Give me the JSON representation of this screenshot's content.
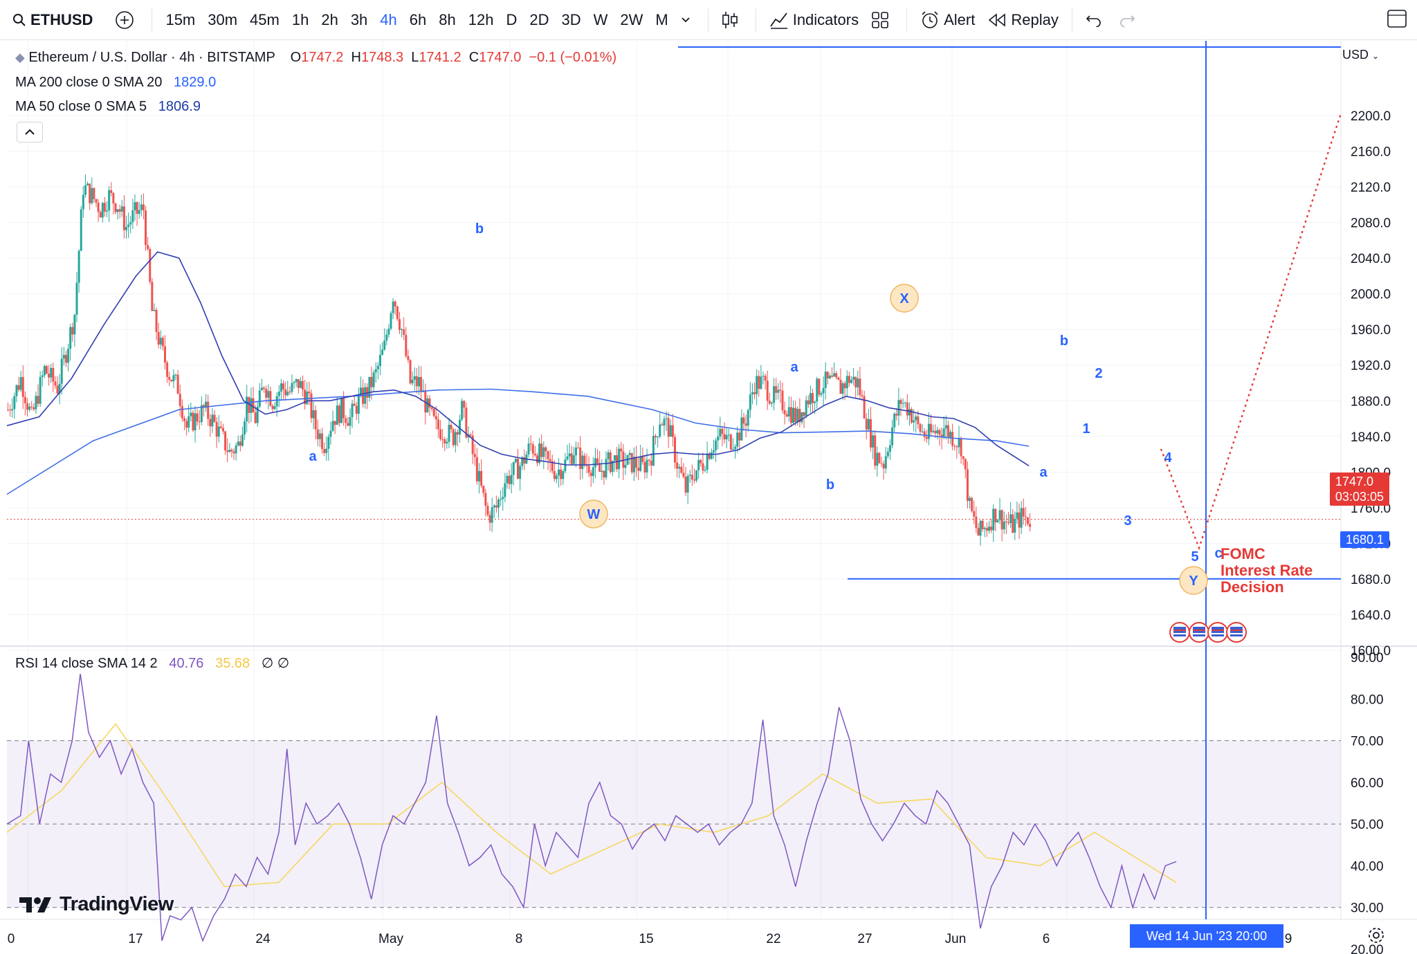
{
  "toolbar": {
    "symbol": "ETHUSD",
    "intervals": [
      "15m",
      "30m",
      "45m",
      "1h",
      "2h",
      "3h",
      "4h",
      "6h",
      "8h",
      "12h",
      "D",
      "2D",
      "3D",
      "W",
      "2W",
      "M"
    ],
    "active_interval": "4h",
    "indicators_label": "Indicators",
    "alert_label": "Alert",
    "replay_label": "Replay"
  },
  "legend": {
    "title": "Ethereum / U.S. Dollar · 4h · BITSTAMP",
    "o_label": "O",
    "o": "1747.2",
    "h_label": "H",
    "h": "1748.3",
    "l_label": "L",
    "l": "1741.2",
    "c_label": "C",
    "c": "1747.0",
    "change": "−0.1 (−0.01%)",
    "ma1_label": "MA 200 close 0 SMA 20",
    "ma1_value": "1829.0",
    "ma2_label": "MA 50 close 0 SMA 5",
    "ma2_value": "1806.9",
    "rsi_label": "RSI 14 close SMA 14 2",
    "rsi_value": "40.76",
    "rsi_sma": "35.68",
    "rsi_extra": "∅ ∅"
  },
  "price_axis": {
    "currency": "USD",
    "ticks": [
      "2200.0",
      "2160.0",
      "2120.0",
      "2080.0",
      "2040.0",
      "2000.0",
      "1960.0",
      "1920.0",
      "1880.0",
      "1840.0",
      "1800.0",
      "1760.0",
      "1720.0",
      "1680.0",
      "1640.0",
      "1600.0"
    ],
    "last_price": "1747.0",
    "countdown": "03:03:05",
    "level_tag": "1680.1"
  },
  "rsi_axis": {
    "ticks": [
      "90.00",
      "80.00",
      "70.00",
      "60.00",
      "50.00",
      "40.00",
      "30.00",
      "20.00"
    ]
  },
  "time_axis": {
    "labels": [
      "0",
      "17",
      "24",
      "May",
      "8",
      "15",
      "22",
      "27",
      "Jun",
      "6",
      "9"
    ],
    "crosshair_date": "Wed 14 Jun '23   20:00"
  },
  "wave_labels": [
    "a",
    "b",
    "W",
    "a",
    "b",
    "X",
    "a",
    "b",
    "1",
    "2",
    "3",
    "4",
    "5",
    "c",
    "Y"
  ],
  "annotation": {
    "line1": "FOMC",
    "line2": "Interest Rate",
    "line3": "Decision"
  },
  "brand": "TradingView",
  "colors": {
    "up": "#26a69a",
    "down": "#ef5350",
    "ma200": "#3f6ee8",
    "ma50": "#2f3fb0",
    "rsi": "#7e57c2",
    "rsi_sma": "#f6d860",
    "accent": "#2962ff",
    "label": "#2962ff",
    "annotation": "#e53935"
  },
  "chart_data": {
    "type": "candlestick",
    "instrument": "ETHUSD",
    "ylim": [
      1580,
      2210
    ],
    "rsi_ylim": [
      15,
      95
    ],
    "rsi_bands": [
      30,
      70
    ],
    "close_path": [
      [
        0,
        1870
      ],
      [
        6,
        1905
      ],
      [
        11,
        1860
      ],
      [
        17,
        1915
      ],
      [
        23,
        1895
      ],
      [
        27,
        1935
      ],
      [
        31,
        1978
      ],
      [
        35,
        2120
      ],
      [
        39,
        2110
      ],
      [
        43,
        2095
      ],
      [
        47,
        2110
      ],
      [
        51,
        2100
      ],
      [
        55,
        2075
      ],
      [
        59,
        2090
      ],
      [
        63,
        2095
      ],
      [
        67,
        1980
      ],
      [
        71,
        1940
      ],
      [
        75,
        1910
      ],
      [
        79,
        1895
      ],
      [
        83,
        1850
      ],
      [
        87,
        1860
      ],
      [
        91,
        1870
      ],
      [
        95,
        1858
      ],
      [
        99,
        1840
      ],
      [
        103,
        1822
      ],
      [
        107,
        1830
      ],
      [
        111,
        1880
      ],
      [
        115,
        1860
      ],
      [
        119,
        1900
      ],
      [
        123,
        1880
      ],
      [
        127,
        1895
      ],
      [
        131,
        1890
      ],
      [
        135,
        1900
      ],
      [
        139,
        1885
      ],
      [
        143,
        1850
      ],
      [
        147,
        1832
      ],
      [
        151,
        1860
      ],
      [
        155,
        1870
      ],
      [
        159,
        1860
      ],
      [
        163,
        1880
      ],
      [
        167,
        1890
      ],
      [
        171,
        1910
      ],
      [
        175,
        1940
      ],
      [
        179,
        2000
      ],
      [
        183,
        1960
      ],
      [
        187,
        1900
      ],
      [
        191,
        1900
      ],
      [
        195,
        1870
      ],
      [
        199,
        1850
      ],
      [
        203,
        1845
      ],
      [
        207,
        1840
      ],
      [
        211,
        1870
      ],
      [
        215,
        1830
      ],
      [
        219,
        1790
      ],
      [
        223,
        1750
      ],
      [
        227,
        1760
      ],
      [
        231,
        1790
      ],
      [
        235,
        1800
      ],
      [
        239,
        1810
      ],
      [
        243,
        1830
      ],
      [
        247,
        1820
      ],
      [
        251,
        1810
      ],
      [
        255,
        1800
      ],
      [
        259,
        1810
      ],
      [
        263,
        1825
      ],
      [
        267,
        1810
      ],
      [
        271,
        1808
      ],
      [
        275,
        1800
      ],
      [
        279,
        1810
      ],
      [
        283,
        1815
      ],
      [
        287,
        1810
      ],
      [
        291,
        1810
      ],
      [
        295,
        1805
      ],
      [
        299,
        1820
      ],
      [
        303,
        1860
      ],
      [
        307,
        1850
      ],
      [
        311,
        1810
      ],
      [
        315,
        1780
      ],
      [
        319,
        1800
      ],
      [
        323,
        1810
      ],
      [
        327,
        1830
      ],
      [
        331,
        1840
      ],
      [
        335,
        1835
      ],
      [
        339,
        1840
      ],
      [
        343,
        1860
      ],
      [
        347,
        1900
      ],
      [
        351,
        1900
      ],
      [
        355,
        1885
      ],
      [
        359,
        1880
      ],
      [
        363,
        1870
      ],
      [
        367,
        1860
      ],
      [
        371,
        1880
      ],
      [
        375,
        1890
      ],
      [
        379,
        1900
      ],
      [
        383,
        1900
      ],
      [
        387,
        1895
      ],
      [
        391,
        1905
      ],
      [
        395,
        1900
      ],
      [
        399,
        1860
      ],
      [
        403,
        1820
      ],
      [
        407,
        1810
      ],
      [
        411,
        1850
      ],
      [
        415,
        1880
      ],
      [
        419,
        1870
      ],
      [
        423,
        1850
      ],
      [
        427,
        1840
      ],
      [
        431,
        1845
      ],
      [
        435,
        1850
      ],
      [
        439,
        1840
      ],
      [
        443,
        1830
      ],
      [
        447,
        1760
      ],
      [
        451,
        1730
      ],
      [
        455,
        1740
      ],
      [
        459,
        1755
      ],
      [
        463,
        1745
      ],
      [
        467,
        1740
      ],
      [
        471,
        1750
      ],
      [
        475,
        1747
      ]
    ],
    "ma200_path": [
      [
        0,
        1775
      ],
      [
        40,
        1835
      ],
      [
        80,
        1870
      ],
      [
        120,
        1880
      ],
      [
        160,
        1885
      ],
      [
        200,
        1892
      ],
      [
        225,
        1893
      ],
      [
        245,
        1890
      ],
      [
        270,
        1885
      ],
      [
        300,
        1870
      ],
      [
        320,
        1855
      ],
      [
        340,
        1848
      ],
      [
        360,
        1844
      ],
      [
        380,
        1845
      ],
      [
        400,
        1846
      ],
      [
        420,
        1843
      ],
      [
        440,
        1838
      ],
      [
        460,
        1835
      ],
      [
        475,
        1829
      ]
    ],
    "ma50_path": [
      [
        0,
        1852
      ],
      [
        15,
        1862
      ],
      [
        30,
        1905
      ],
      [
        45,
        1965
      ],
      [
        60,
        2020
      ],
      [
        70,
        2047
      ],
      [
        80,
        2040
      ],
      [
        90,
        1990
      ],
      [
        100,
        1930
      ],
      [
        110,
        1880
      ],
      [
        120,
        1865
      ],
      [
        130,
        1870
      ],
      [
        140,
        1880
      ],
      [
        150,
        1880
      ],
      [
        160,
        1885
      ],
      [
        170,
        1890
      ],
      [
        180,
        1892
      ],
      [
        190,
        1885
      ],
      [
        200,
        1870
      ],
      [
        210,
        1850
      ],
      [
        220,
        1830
      ],
      [
        230,
        1820
      ],
      [
        240,
        1815
      ],
      [
        250,
        1812
      ],
      [
        260,
        1808
      ],
      [
        270,
        1808
      ],
      [
        280,
        1810
      ],
      [
        290,
        1815
      ],
      [
        300,
        1820
      ],
      [
        310,
        1822
      ],
      [
        320,
        1820
      ],
      [
        330,
        1820
      ],
      [
        340,
        1825
      ],
      [
        350,
        1838
      ],
      [
        360,
        1845
      ],
      [
        370,
        1860
      ],
      [
        380,
        1875
      ],
      [
        390,
        1885
      ],
      [
        400,
        1880
      ],
      [
        410,
        1872
      ],
      [
        420,
        1868
      ],
      [
        430,
        1862
      ],
      [
        440,
        1860
      ],
      [
        450,
        1850
      ],
      [
        460,
        1830
      ],
      [
        475,
        1807
      ]
    ],
    "rsi_path": [
      [
        0,
        50
      ],
      [
        5,
        52
      ],
      [
        8,
        70
      ],
      [
        12,
        50
      ],
      [
        16,
        62
      ],
      [
        20,
        60
      ],
      [
        24,
        70
      ],
      [
        27,
        86
      ],
      [
        30,
        72
      ],
      [
        34,
        66
      ],
      [
        38,
        70
      ],
      [
        42,
        62
      ],
      [
        46,
        68
      ],
      [
        50,
        60
      ],
      [
        54,
        55
      ],
      [
        57,
        22
      ],
      [
        60,
        28
      ],
      [
        64,
        27
      ],
      [
        68,
        30
      ],
      [
        72,
        22
      ],
      [
        76,
        28
      ],
      [
        80,
        32
      ],
      [
        84,
        38
      ],
      [
        88,
        35
      ],
      [
        92,
        42
      ],
      [
        96,
        38
      ],
      [
        100,
        48
      ],
      [
        103,
        68
      ],
      [
        106,
        45
      ],
      [
        110,
        55
      ],
      [
        114,
        50
      ],
      [
        118,
        52
      ],
      [
        122,
        55
      ],
      [
        126,
        50
      ],
      [
        130,
        42
      ],
      [
        134,
        32
      ],
      [
        138,
        45
      ],
      [
        142,
        52
      ],
      [
        146,
        50
      ],
      [
        150,
        55
      ],
      [
        154,
        60
      ],
      [
        158,
        76
      ],
      [
        162,
        55
      ],
      [
        166,
        48
      ],
      [
        170,
        40
      ],
      [
        174,
        42
      ],
      [
        178,
        45
      ],
      [
        182,
        38
      ],
      [
        186,
        35
      ],
      [
        190,
        30
      ],
      [
        194,
        50
      ],
      [
        198,
        40
      ],
      [
        202,
        48
      ],
      [
        206,
        45
      ],
      [
        210,
        42
      ],
      [
        214,
        55
      ],
      [
        218,
        60
      ],
      [
        222,
        52
      ],
      [
        226,
        50
      ],
      [
        230,
        44
      ],
      [
        234,
        48
      ],
      [
        238,
        50
      ],
      [
        242,
        46
      ],
      [
        246,
        52
      ],
      [
        250,
        50
      ],
      [
        254,
        48
      ],
      [
        258,
        50
      ],
      [
        262,
        45
      ],
      [
        266,
        48
      ],
      [
        270,
        50
      ],
      [
        274,
        55
      ],
      [
        278,
        75
      ],
      [
        282,
        52
      ],
      [
        286,
        45
      ],
      [
        290,
        35
      ],
      [
        294,
        46
      ],
      [
        298,
        55
      ],
      [
        302,
        62
      ],
      [
        306,
        78
      ],
      [
        310,
        70
      ],
      [
        314,
        56
      ],
      [
        318,
        50
      ],
      [
        322,
        46
      ],
      [
        326,
        50
      ],
      [
        330,
        55
      ],
      [
        334,
        52
      ],
      [
        338,
        50
      ],
      [
        342,
        58
      ],
      [
        346,
        55
      ],
      [
        350,
        50
      ],
      [
        354,
        45
      ],
      [
        358,
        25
      ],
      [
        362,
        35
      ],
      [
        366,
        40
      ],
      [
        370,
        48
      ],
      [
        374,
        45
      ],
      [
        378,
        50
      ],
      [
        382,
        46
      ],
      [
        386,
        40
      ],
      [
        390,
        45
      ],
      [
        394,
        48
      ],
      [
        398,
        42
      ],
      [
        402,
        35
      ],
      [
        406,
        30
      ],
      [
        410,
        40
      ],
      [
        414,
        30
      ],
      [
        418,
        38
      ],
      [
        422,
        32
      ],
      [
        426,
        40
      ],
      [
        430,
        41
      ]
    ],
    "rsi_sma_path": [
      [
        0,
        48
      ],
      [
        20,
        58
      ],
      [
        40,
        74
      ],
      [
        60,
        55
      ],
      [
        80,
        35
      ],
      [
        100,
        36
      ],
      [
        120,
        50
      ],
      [
        140,
        50
      ],
      [
        160,
        60
      ],
      [
        180,
        48
      ],
      [
        200,
        38
      ],
      [
        220,
        44
      ],
      [
        240,
        50
      ],
      [
        260,
        48
      ],
      [
        280,
        52
      ],
      [
        300,
        62
      ],
      [
        320,
        55
      ],
      [
        340,
        56
      ],
      [
        360,
        42
      ],
      [
        380,
        40
      ],
      [
        400,
        48
      ],
      [
        420,
        40
      ],
      [
        430,
        36
      ]
    ]
  }
}
